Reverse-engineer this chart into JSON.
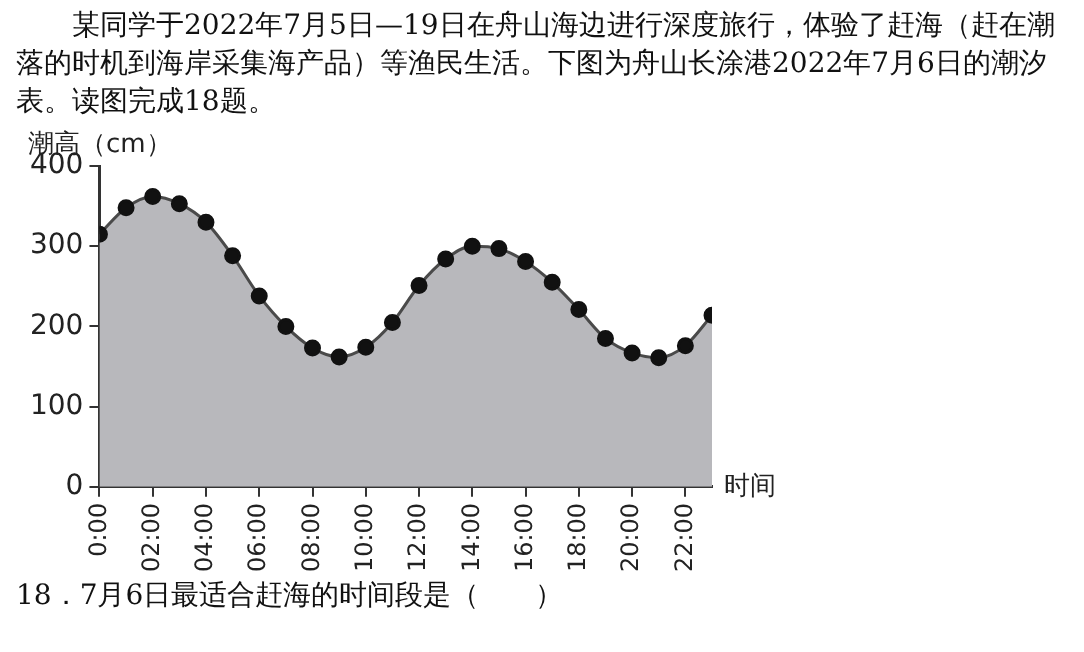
{
  "chart_data": {
    "type": "area",
    "title": "某同学于2022年7月5日—19日在舟山海边进行深度旅行，体验了赶海（赶在潮落的时机到海岸采集海产品）等渔民生活。下图为舟山长涂港2022年7月6日的潮汐表。读图完成18题。",
    "ylabel": "潮高（cm）",
    "xlabel": "时间",
    "annotations": [
      "18．7月6日最适合赶海的时间段是（　　）"
    ],
    "x": [
      0,
      1,
      2,
      3,
      4,
      5,
      6,
      7,
      8,
      9,
      10,
      11,
      12,
      13,
      14,
      15,
      16,
      17,
      18,
      19,
      20,
      21,
      22,
      23
    ],
    "series": [
      {
        "color": "#b8b8bc",
        "values": [
          315,
          348,
          362,
          353,
          330,
          288,
          238,
          200,
          173,
          162,
          174,
          205,
          251,
          284,
          300,
          297,
          281,
          255,
          221,
          185,
          167,
          161,
          176,
          214
        ]
      }
    ],
    "xlim": [
      0,
      23
    ],
    "xticks": [
      {
        "value": 0,
        "label": "0:00"
      },
      {
        "value": 2,
        "label": "02:00"
      },
      {
        "value": 4,
        "label": "04:00"
      },
      {
        "value": 6,
        "label": "06:00"
      },
      {
        "value": 8,
        "label": "08:00"
      },
      {
        "value": 10,
        "label": "10:00"
      },
      {
        "value": 12,
        "label": "12:00"
      },
      {
        "value": 14,
        "label": "14:00"
      },
      {
        "value": 16,
        "label": "16:00"
      },
      {
        "value": 18,
        "label": "18:00"
      },
      {
        "value": 20,
        "label": "20:00"
      },
      {
        "value": 22,
        "label": "22:00"
      }
    ],
    "ylim": [
      0,
      400
    ],
    "yticks": [
      0,
      100,
      200,
      300,
      400
    ],
    "grid": false,
    "legend": false,
    "marker": "circle",
    "line_style": "solid"
  }
}
